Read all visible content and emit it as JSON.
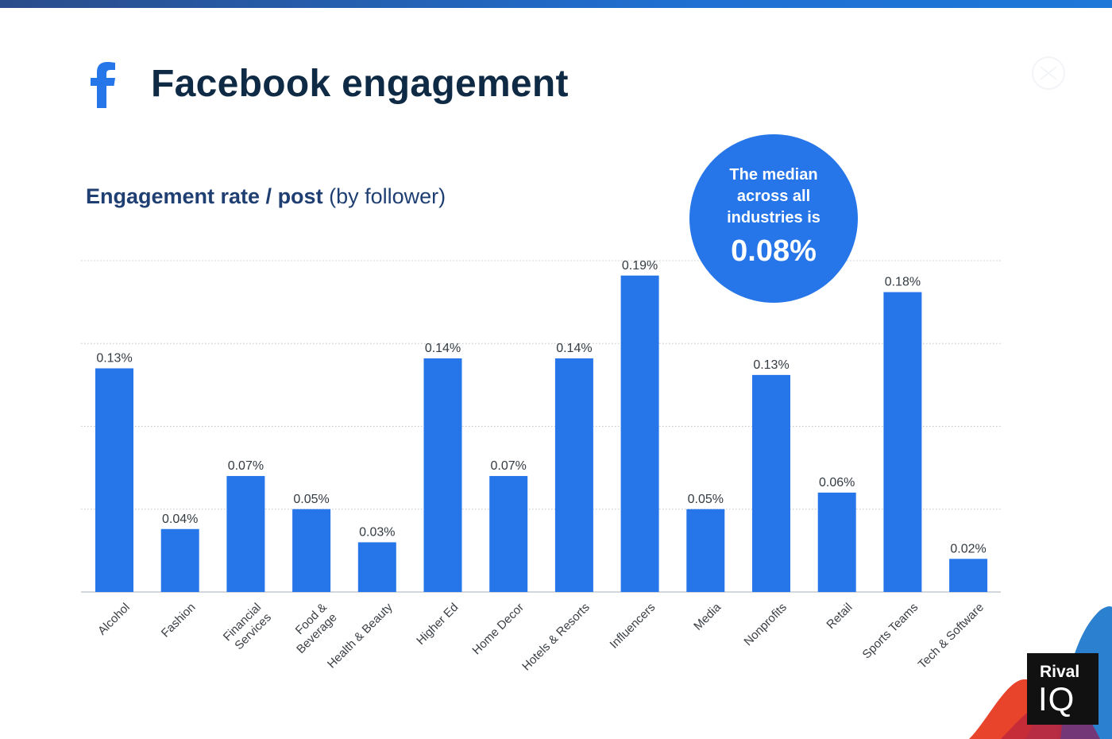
{
  "header": {
    "title": "Facebook engagement",
    "subtitle_bold": "Engagement rate / post",
    "subtitle_normal": "(by follower)"
  },
  "median_callout": {
    "text": "The median across all industries is",
    "value": "0.08%"
  },
  "brand": {
    "line1": "Rival",
    "line2": "IQ"
  },
  "colors": {
    "bar": "#2676ea",
    "title": "#0f2a44",
    "subtitle": "#1f3f73"
  },
  "icons": [
    "facebook-icon",
    "rival-iq-logo"
  ],
  "chart_data": {
    "type": "bar",
    "title": "Engagement rate / post (by follower)",
    "categories": [
      "Alcohol",
      "Fashion",
      "Financial Services",
      "Food & Beverage",
      "Health & Beauty",
      "Higher Ed",
      "Home Decor",
      "Hotels & Resorts",
      "Influencers",
      "Media",
      "Nonprofits",
      "Retail",
      "Sports Teams",
      "Tech & Software"
    ],
    "category_lines": [
      [
        "Alcohol"
      ],
      [
        "Fashion"
      ],
      [
        "Financial",
        "Services"
      ],
      [
        "Food &",
        "Beverage"
      ],
      [
        "Health & Beauty"
      ],
      [
        "Higher Ed"
      ],
      [
        "Home Decor"
      ],
      [
        "Hotels & Resorts"
      ],
      [
        "Influencers"
      ],
      [
        "Media"
      ],
      [
        "Nonprofits"
      ],
      [
        "Retail"
      ],
      [
        "Sports Teams"
      ],
      [
        "Tech & Software"
      ]
    ],
    "values": [
      0.135,
      0.038,
      0.07,
      0.05,
      0.03,
      0.141,
      0.07,
      0.141,
      0.191,
      0.05,
      0.131,
      0.06,
      0.181,
      0.02
    ],
    "data_labels": [
      "0.13%",
      "0.04%",
      "0.07%",
      "0.05%",
      "0.03%",
      "0.14%",
      "0.07%",
      "0.14%",
      "0.19%",
      "0.05%",
      "0.13%",
      "0.06%",
      "0.18%",
      "0.02%"
    ],
    "ylim": [
      0,
      0.2
    ],
    "gridlines": [
      0.05,
      0.1,
      0.15,
      0.2
    ],
    "grid": true,
    "xlabel": "",
    "ylabel": ""
  }
}
